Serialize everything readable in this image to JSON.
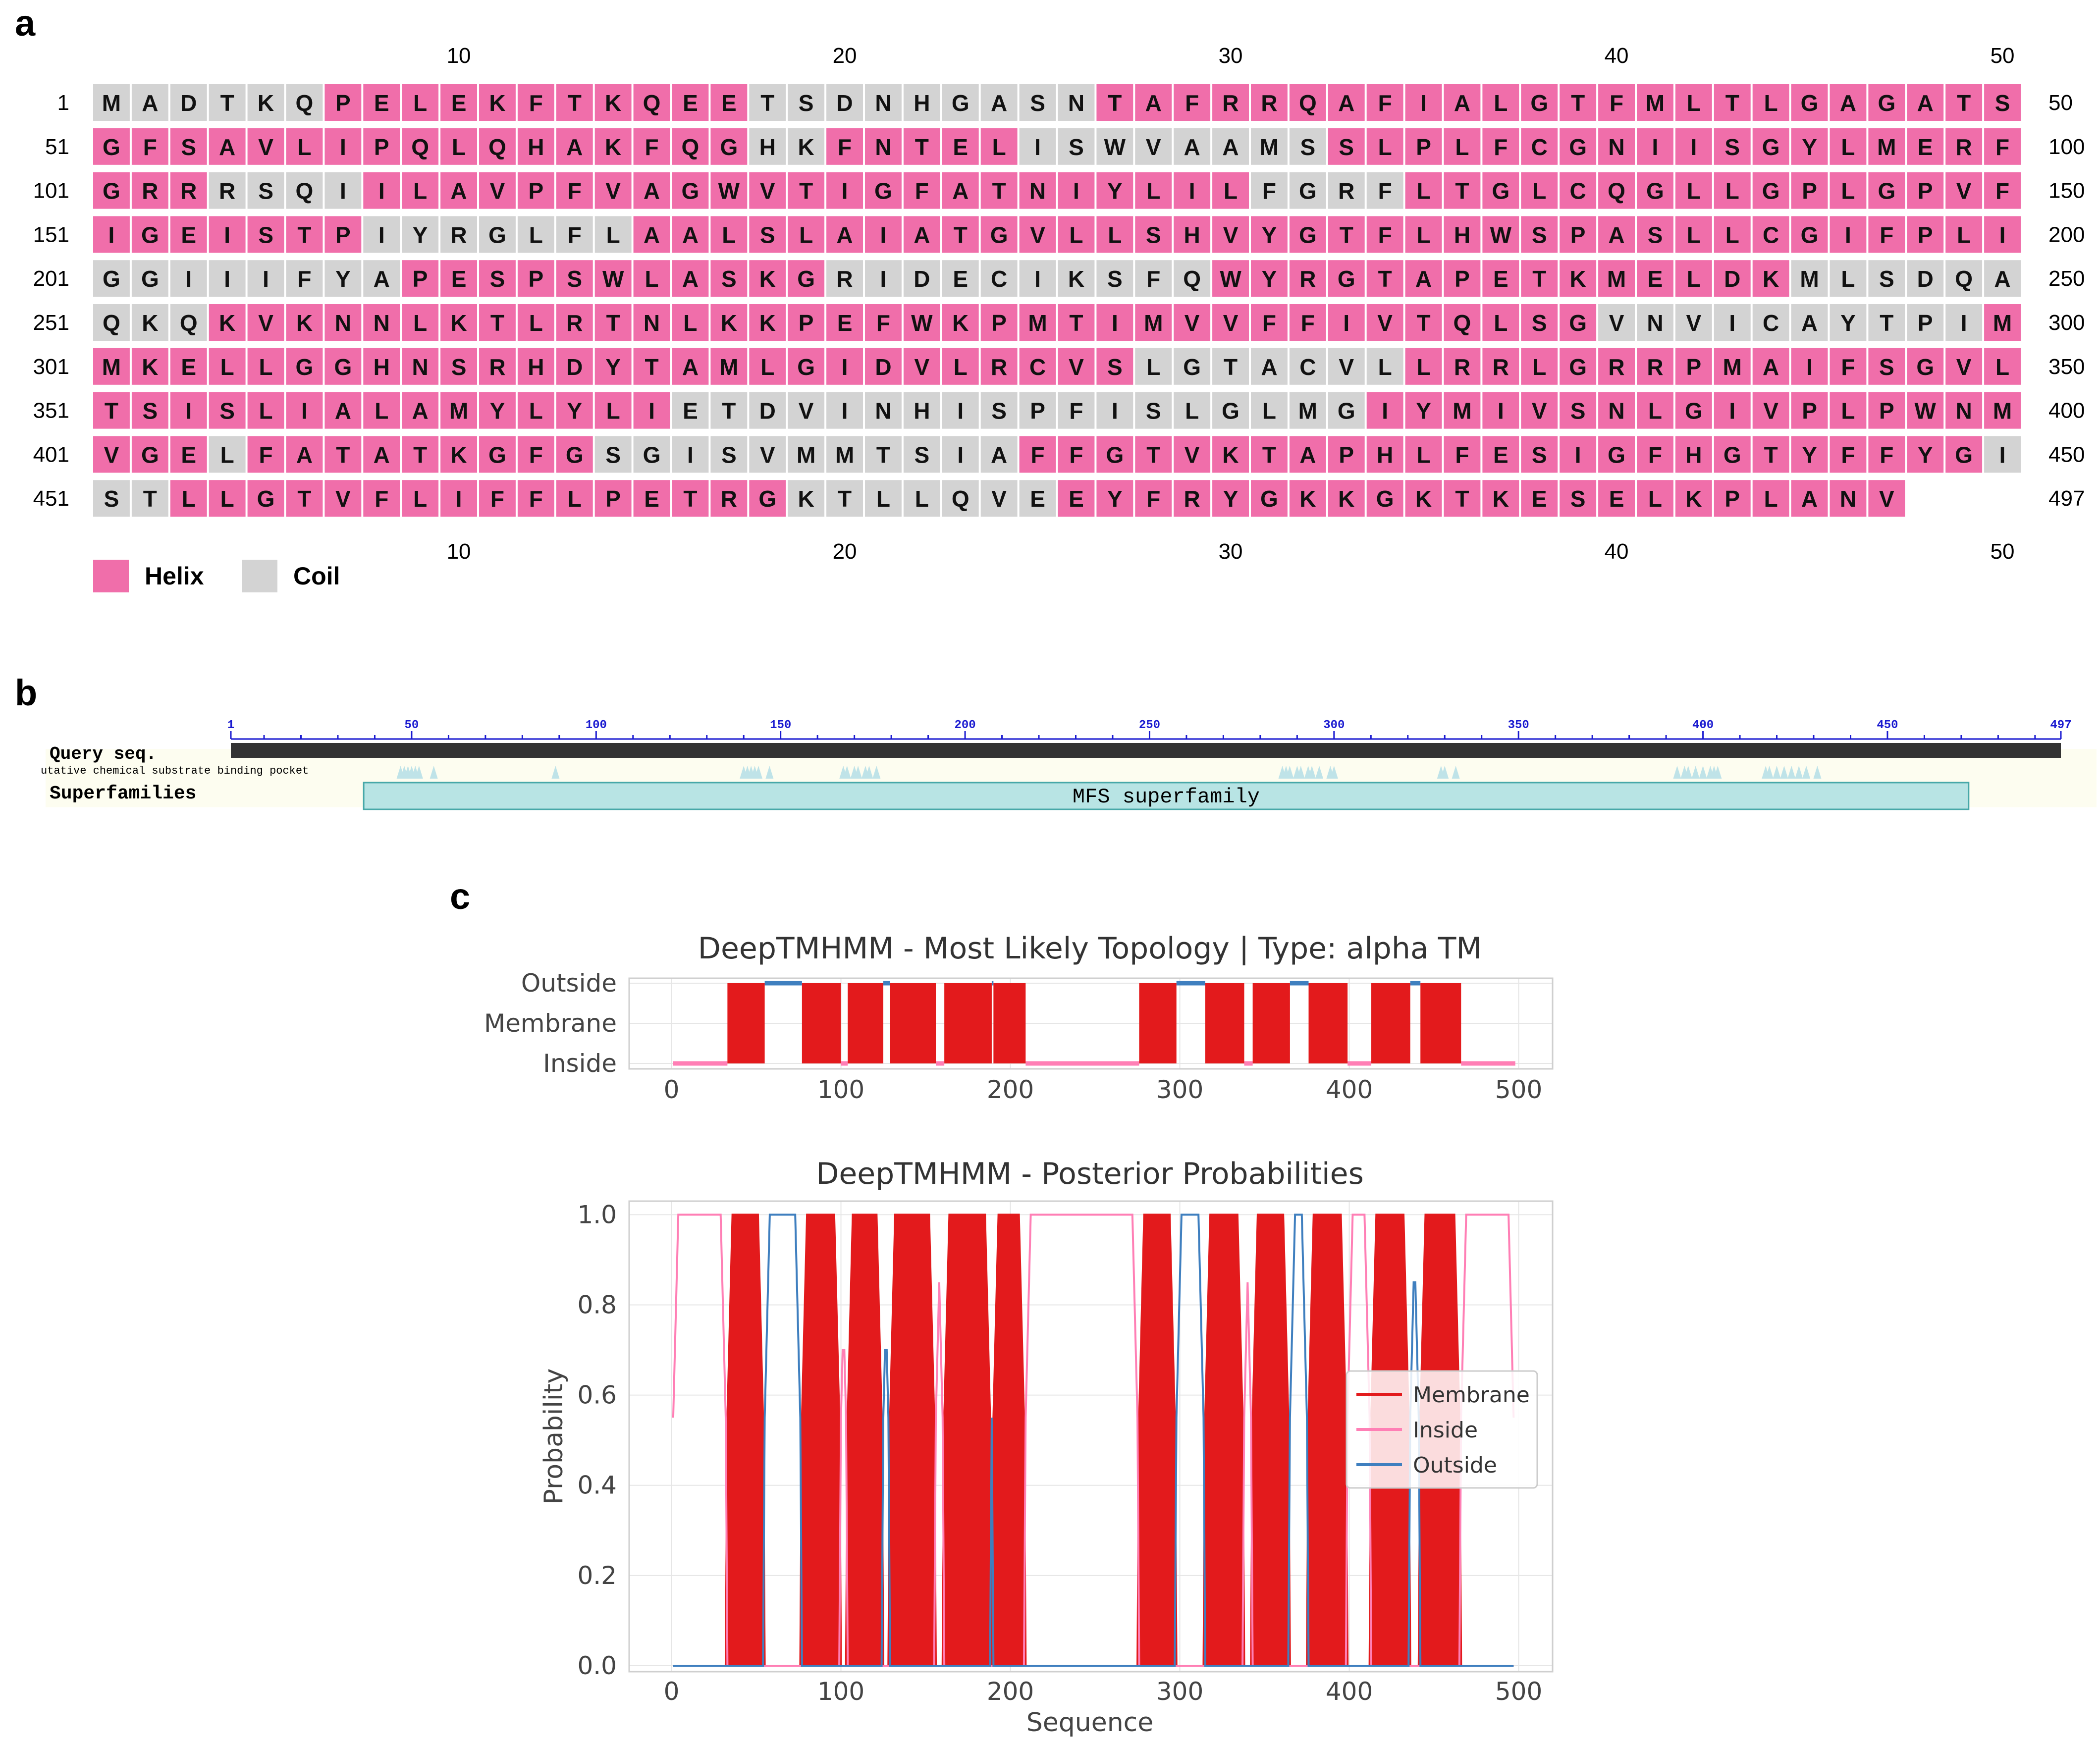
{
  "panel_labels": {
    "a": "a",
    "b": "b",
    "c": "c"
  },
  "colors": {
    "helix": "#f06eaa",
    "coil": "#d3d3d3",
    "query_bar": "#333333",
    "superfamily_fill": "#b8e4e4",
    "superfamily_stroke": "#47a8a8",
    "pocket": "#bfe3e8",
    "ruler": "#1a1ad0",
    "membrane": "#e31a1c",
    "inside": "#ff7fb5",
    "outside": "#3f7fbf"
  },
  "secondary_structure": {
    "sequence": "MADTKQPELEKFTKQEETSDNHGASNTAFRRQAFIALGTFMLTLGAGATSGFSAVLIPQLQHAKFQGHKFNTELISWVAAMSSLPLFCGNIISGYLMERFGRRRSQIILAVPFVAGWVTIGFATNIYLILFGRFLTGLCQGLLGPLGPVFIGEISTPIYRGLFLAALSLAIATGVLLSHVYGTFLHWSPASLLCGIFPLIGGIIIFYAPESPSWLASKGRIDECIKSFQWYRGTAPETKMELDKMLSDQAQKQKVKNNLKTLRTNLKKPEFWKPMTIMVVFFIVTQLSGVNVICAYTPIMMKELLGGHNSRHDYTAMLGIDVLRCVSLGTACVLLRRLGRRPMAIFSGVLTSISLIALAMYLYLIETDVINHISPFISLGLMGIYMIVSNLGIVPLPWNMVGELFATATKGFGSGISVMMTSIAFFGTVKTAPHLFESIGFHGTYFFYGISTLLGTVFLIFFLPETRGKTLLQVEEYFRYGKKGKTKESELKPLANV",
    "states": "CCCCCCHHHHHHHHHHHCCCCCCCCCHHHHHHHHHHHHHHHHHHHHHHHHHHHHHHHHHHHHHHHHHCCHHHHHCCCCCCCCHHHHHHHHHHHHHHHHHHHHHCCCCHHHHHHHHHHHHHHHHHHHHHHHCCCCHHHHHHHHHHHHHHHHHHHHHHHCCCCCCCHHHHHHHHHHHHHHHHHHHHHHHHHHHHHHHHHHHHCCCCCCCCHHHHHHHHHHHCCCCCCCCCCHHHHHHHHHHHHHHHCCCCCCCCCHHHHHHHHHHHHHHHHHHHHHHHHHHHHHHHHHHHHCCCCCCCCCCHHHHHHHHHHHHHHHHHHHHHHHHHHHHCCCCCCCHHHHHHHHHHHHHHHHHHHHHHHHHHHHHHHCCCCCCCCCCCCCCCCCCHHHHHHHHHHHHHHHHHHHHCHHHHHHHHHCCCCCCCCCCCHHHHHHHHHHHHHHHHHHHHHHHHHCCCHHHHHHHHHHHHHHHHCCCCCCCHHHHHHHHHHHHHHHHHHHHHHHHHHHHHHHHHHHHHHHCCCCCCCCCCCCCCCCCCCCCCCC",
    "row_length": 50,
    "column_ticks": [
      "10",
      "20",
      "30",
      "40",
      "50"
    ],
    "row_start_labels": [
      "1",
      "51",
      "101",
      "151",
      "201",
      "251",
      "301",
      "351",
      "401",
      "451"
    ],
    "row_end_labels": [
      "50",
      "100",
      "150",
      "200",
      "250",
      "300",
      "350",
      "400",
      "450",
      "497"
    ],
    "legend": [
      {
        "label": "Helix",
        "state": "H"
      },
      {
        "label": "Coil",
        "state": "C"
      }
    ]
  },
  "domain_panel": {
    "query_label": "Query seq.",
    "pocket_label": "utative chemical substrate binding pocket",
    "superfamilies_label": "Superfamilies",
    "superfamily_name": "MFS superfamily",
    "superfamily_range": [
      37,
      472
    ],
    "ruler_labels": [
      "1",
      "50",
      "100",
      "150",
      "200",
      "250",
      "300",
      "350",
      "400",
      "450",
      "497"
    ],
    "sequence_length": 497,
    "pocket_positions": [
      47,
      48,
      49,
      50,
      51,
      52,
      56,
      89,
      140,
      141,
      142,
      143,
      144,
      147,
      167,
      168,
      170,
      171,
      173,
      174,
      176,
      286,
      287,
      288,
      290,
      291,
      293,
      294,
      296,
      299,
      300,
      329,
      330,
      333,
      393,
      395,
      396,
      398,
      400,
      402,
      403,
      404,
      417,
      418,
      420,
      422,
      424,
      426,
      428,
      431
    ]
  },
  "chart_data": [
    {
      "type": "line",
      "title": "DeepTMHMM - Most Likely Topology | Type: alpha TM",
      "x_ticks": [
        "0",
        "100",
        "200",
        "300",
        "400",
        "500"
      ],
      "y_categories": [
        "Inside",
        "Membrane",
        "Outside"
      ],
      "xlim": [
        -25,
        520
      ],
      "grid": true,
      "membrane_segments": [
        [
          33,
          54
        ],
        [
          77,
          99
        ],
        [
          104,
          124
        ],
        [
          129,
          155
        ],
        [
          161,
          188
        ],
        [
          190,
          208
        ],
        [
          276,
          297
        ],
        [
          315,
          337
        ],
        [
          343,
          364
        ],
        [
          376,
          398
        ],
        [
          413,
          435
        ],
        [
          442,
          465
        ]
      ],
      "topology": [
        {
          "region": "Inside",
          "range": [
            1,
            32
          ]
        },
        {
          "region": "Membrane",
          "range": [
            33,
            54
          ]
        },
        {
          "region": "Outside",
          "range": [
            55,
            76
          ]
        },
        {
          "region": "Membrane",
          "range": [
            77,
            99
          ]
        },
        {
          "region": "Inside",
          "range": [
            100,
            103
          ]
        },
        {
          "region": "Membrane",
          "range": [
            104,
            124
          ]
        },
        {
          "region": "Outside",
          "range": [
            125,
            128
          ]
        },
        {
          "region": "Membrane",
          "range": [
            129,
            155
          ]
        },
        {
          "region": "Inside",
          "range": [
            156,
            160
          ]
        },
        {
          "region": "Membrane",
          "range": [
            161,
            188
          ]
        },
        {
          "region": "Outside",
          "range": [
            189,
            189
          ]
        },
        {
          "region": "Membrane",
          "range": [
            190,
            208
          ]
        },
        {
          "region": "Inside",
          "range": [
            209,
            275
          ]
        },
        {
          "region": "Membrane",
          "range": [
            276,
            297
          ]
        },
        {
          "region": "Outside",
          "range": [
            298,
            314
          ]
        },
        {
          "region": "Membrane",
          "range": [
            315,
            337
          ]
        },
        {
          "region": "Inside",
          "range": [
            338,
            342
          ]
        },
        {
          "region": "Membrane",
          "range": [
            343,
            364
          ]
        },
        {
          "region": "Outside",
          "range": [
            365,
            375
          ]
        },
        {
          "region": "Membrane",
          "range": [
            376,
            398
          ]
        },
        {
          "region": "Inside",
          "range": [
            399,
            412
          ]
        },
        {
          "region": "Membrane",
          "range": [
            413,
            435
          ]
        },
        {
          "region": "Outside",
          "range": [
            436,
            441
          ]
        },
        {
          "region": "Membrane",
          "range": [
            442,
            465
          ]
        },
        {
          "region": "Inside",
          "range": [
            466,
            497
          ]
        }
      ]
    },
    {
      "type": "line",
      "title": "DeepTMHMM - Posterior Probabilities",
      "xlabel": "Sequence",
      "ylabel": "Probability",
      "x_ticks": [
        "0",
        "100",
        "200",
        "300",
        "400",
        "500"
      ],
      "y_ticks": [
        "0.0",
        "0.2",
        "0.4",
        "0.6",
        "0.8",
        "1.0"
      ],
      "xlim": [
        -25,
        520
      ],
      "ylim": [
        0,
        1.03
      ],
      "grid": true,
      "legend_position": "center-right",
      "series": [
        {
          "name": "Membrane",
          "color": "#e31a1c",
          "fill": true,
          "high_segments": [
            [
              33,
              54
            ],
            [
              77,
              99
            ],
            [
              104,
              124
            ],
            [
              129,
              155
            ],
            [
              161,
              188
            ],
            [
              190,
              208
            ],
            [
              276,
              297
            ],
            [
              315,
              337
            ],
            [
              343,
              364
            ],
            [
              376,
              398
            ],
            [
              413,
              435
            ],
            [
              442,
              465
            ]
          ]
        },
        {
          "name": "Inside",
          "color": "#ff7fb5",
          "high_segments": [
            [
              1,
              32
            ],
            [
              100,
              103
            ],
            [
              156,
              160
            ],
            [
              209,
              275
            ],
            [
              338,
              342
            ],
            [
              399,
              412
            ],
            [
              466,
              497
            ]
          ]
        },
        {
          "name": "Outside",
          "color": "#3f7fbf",
          "high_segments": [
            [
              55,
              76
            ],
            [
              125,
              128
            ],
            [
              189,
              189
            ],
            [
              298,
              314
            ],
            [
              365,
              375
            ],
            [
              436,
              441
            ]
          ]
        }
      ]
    }
  ]
}
